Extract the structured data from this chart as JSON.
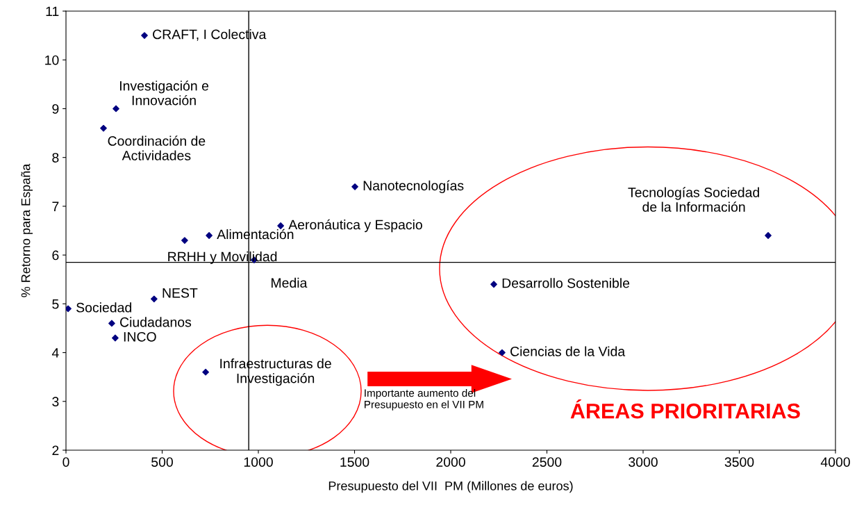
{
  "chart_data": {
    "type": "scatter",
    "xlabel": "Presupuesto del VII  PM (Millones de euros)",
    "ylabel": "% Retorno para España",
    "x": [
      408,
      260,
      195,
      1502,
      1116,
      744,
      617,
      978,
      3650,
      2224,
      2267,
      458,
      11,
      238,
      256,
      726
    ],
    "series": [
      {
        "color": "#000080",
        "values": [
          10.5,
          9.0,
          8.6,
          7.4,
          6.6,
          6.4,
          6.3,
          5.9,
          6.4,
          5.4,
          4.0,
          5.1,
          4.9,
          4.6,
          4.3,
          3.6
        ]
      }
    ],
    "marker": "diamond",
    "grid": false,
    "legend": false,
    "xlim": [
      0,
      4000
    ],
    "xticks": [
      0,
      500,
      1000,
      1500,
      2000,
      2500,
      3000,
      3500,
      4000
    ],
    "ylim": [
      2,
      11
    ],
    "yticks": [
      2,
      3,
      4,
      5,
      6,
      7,
      8,
      9,
      10,
      11
    ],
    "ref_lines": [
      {
        "axis": "x",
        "value": 950,
        "color": "#000000"
      },
      {
        "axis": "y",
        "value": 5.85,
        "color": "#000000"
      }
    ],
    "annotations": [
      {
        "text": "CRAFT, I Colectiva",
        "x": 408,
        "y": 10.5
      },
      {
        "text": "Investigación e\nInnovación",
        "x": 260,
        "y": 9.0
      },
      {
        "text": "Coordinación de\nActividades",
        "x": 195,
        "y": 8.6
      },
      {
        "text": "Nanotecnologías",
        "x": 1502,
        "y": 7.4
      },
      {
        "text": "Aeronáutica y Espacio",
        "x": 1116,
        "y": 6.6
      },
      {
        "text": "Alimentación",
        "x": 744,
        "y": 6.4
      },
      {
        "text": "RRHH y Movilidad",
        "x": 617,
        "y": 6.3
      },
      {
        "text": "Media",
        "x": 978,
        "y": 5.9
      },
      {
        "text": "Tecnologías Sociedad\nde la Información",
        "x": 3650,
        "y": 6.4
      },
      {
        "text": "Desarrollo Sostenible",
        "x": 2224,
        "y": 5.4
      },
      {
        "text": "Ciencias de la Vida",
        "x": 2267,
        "y": 4.0
      },
      {
        "text": "NEST",
        "x": 458,
        "y": 5.1
      },
      {
        "text": "Sociedad",
        "x": 11,
        "y": 4.9
      },
      {
        "text": "Ciudadanos",
        "x": 238,
        "y": 4.6
      },
      {
        "text": "INCO",
        "x": 256,
        "y": 4.3
      },
      {
        "text": "Infraestructuras de\nInvestigación",
        "x": 726,
        "y": 3.6
      },
      "Importante aumento del\nPresupuesto en el VII PM",
      "ÁREAS PRIORITARIAS"
    ]
  }
}
